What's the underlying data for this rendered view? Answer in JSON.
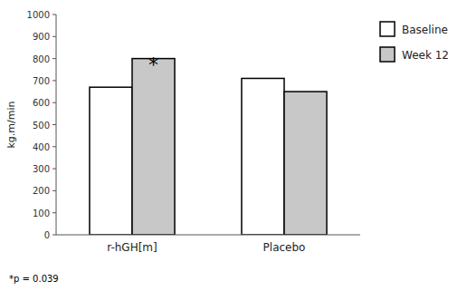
{
  "chart_data": {
    "type": "bar",
    "categories": [
      "r-hGH[m]",
      "Placebo"
    ],
    "series": [
      {
        "name": "Baseline",
        "color": "#ffffff",
        "values": [
          670,
          710
        ]
      },
      {
        "name": "Week 12",
        "color": "#c8c8c8",
        "values": [
          800,
          650
        ]
      }
    ],
    "ylabel": "kg.m/min",
    "ylim": [
      0,
      1000
    ],
    "yticks": [
      0,
      100,
      200,
      300,
      400,
      500,
      600,
      700,
      800,
      900,
      1000
    ],
    "legend": "right",
    "annotations": [
      "*",
      "*p = 0.039"
    ]
  }
}
